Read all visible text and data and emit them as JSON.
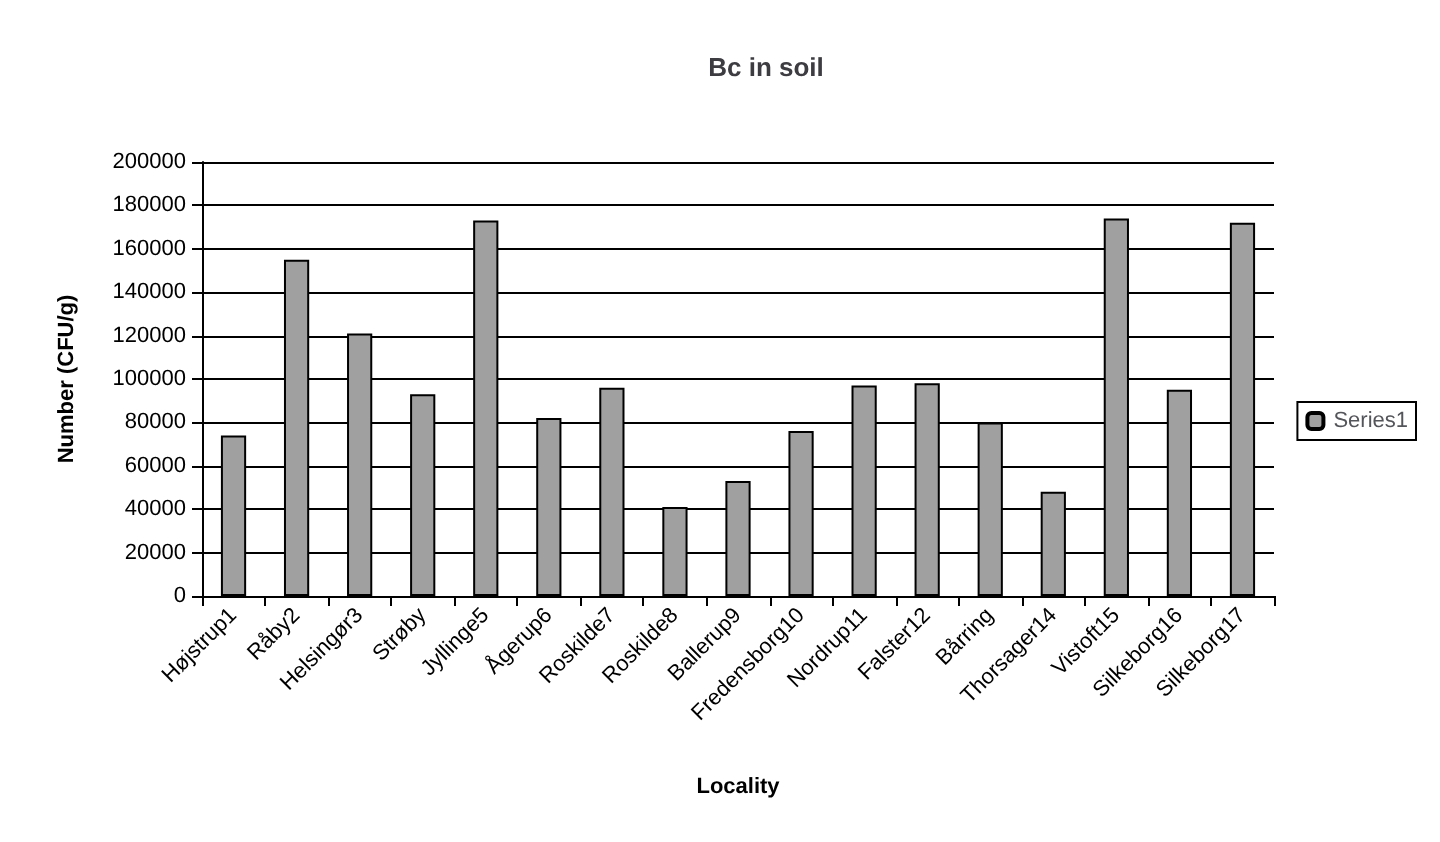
{
  "chart_data": {
    "type": "bar",
    "title": "Bc in soil",
    "xlabel": "Locality",
    "ylabel": "Number (CFU/g)",
    "categories": [
      "Højstrup1",
      "Råby2",
      "Helsingør3",
      "Strøby",
      "Jyllinge5",
      "Ågerup6",
      "Roskilde7",
      "Roskilde8",
      "Ballerup9",
      "Fredensborg10",
      "Nordrup11",
      "Falster12",
      "Bårring",
      "Thorsager14",
      "Vistoft15",
      "Silkeborg16",
      "Silkeborg17"
    ],
    "series": [
      {
        "name": "Series1",
        "color": "#a0a0a0",
        "values": [
          74000,
          155000,
          121000,
          93000,
          173000,
          82000,
          96000,
          41000,
          53000,
          76000,
          97000,
          98000,
          80000,
          48000,
          174000,
          95000,
          172000
        ]
      }
    ],
    "ylim": [
      0,
      200000
    ],
    "yticks": [
      0,
      20000,
      40000,
      60000,
      80000,
      100000,
      120000,
      140000,
      160000,
      180000,
      200000
    ],
    "grid": "y",
    "legend": "right"
  }
}
